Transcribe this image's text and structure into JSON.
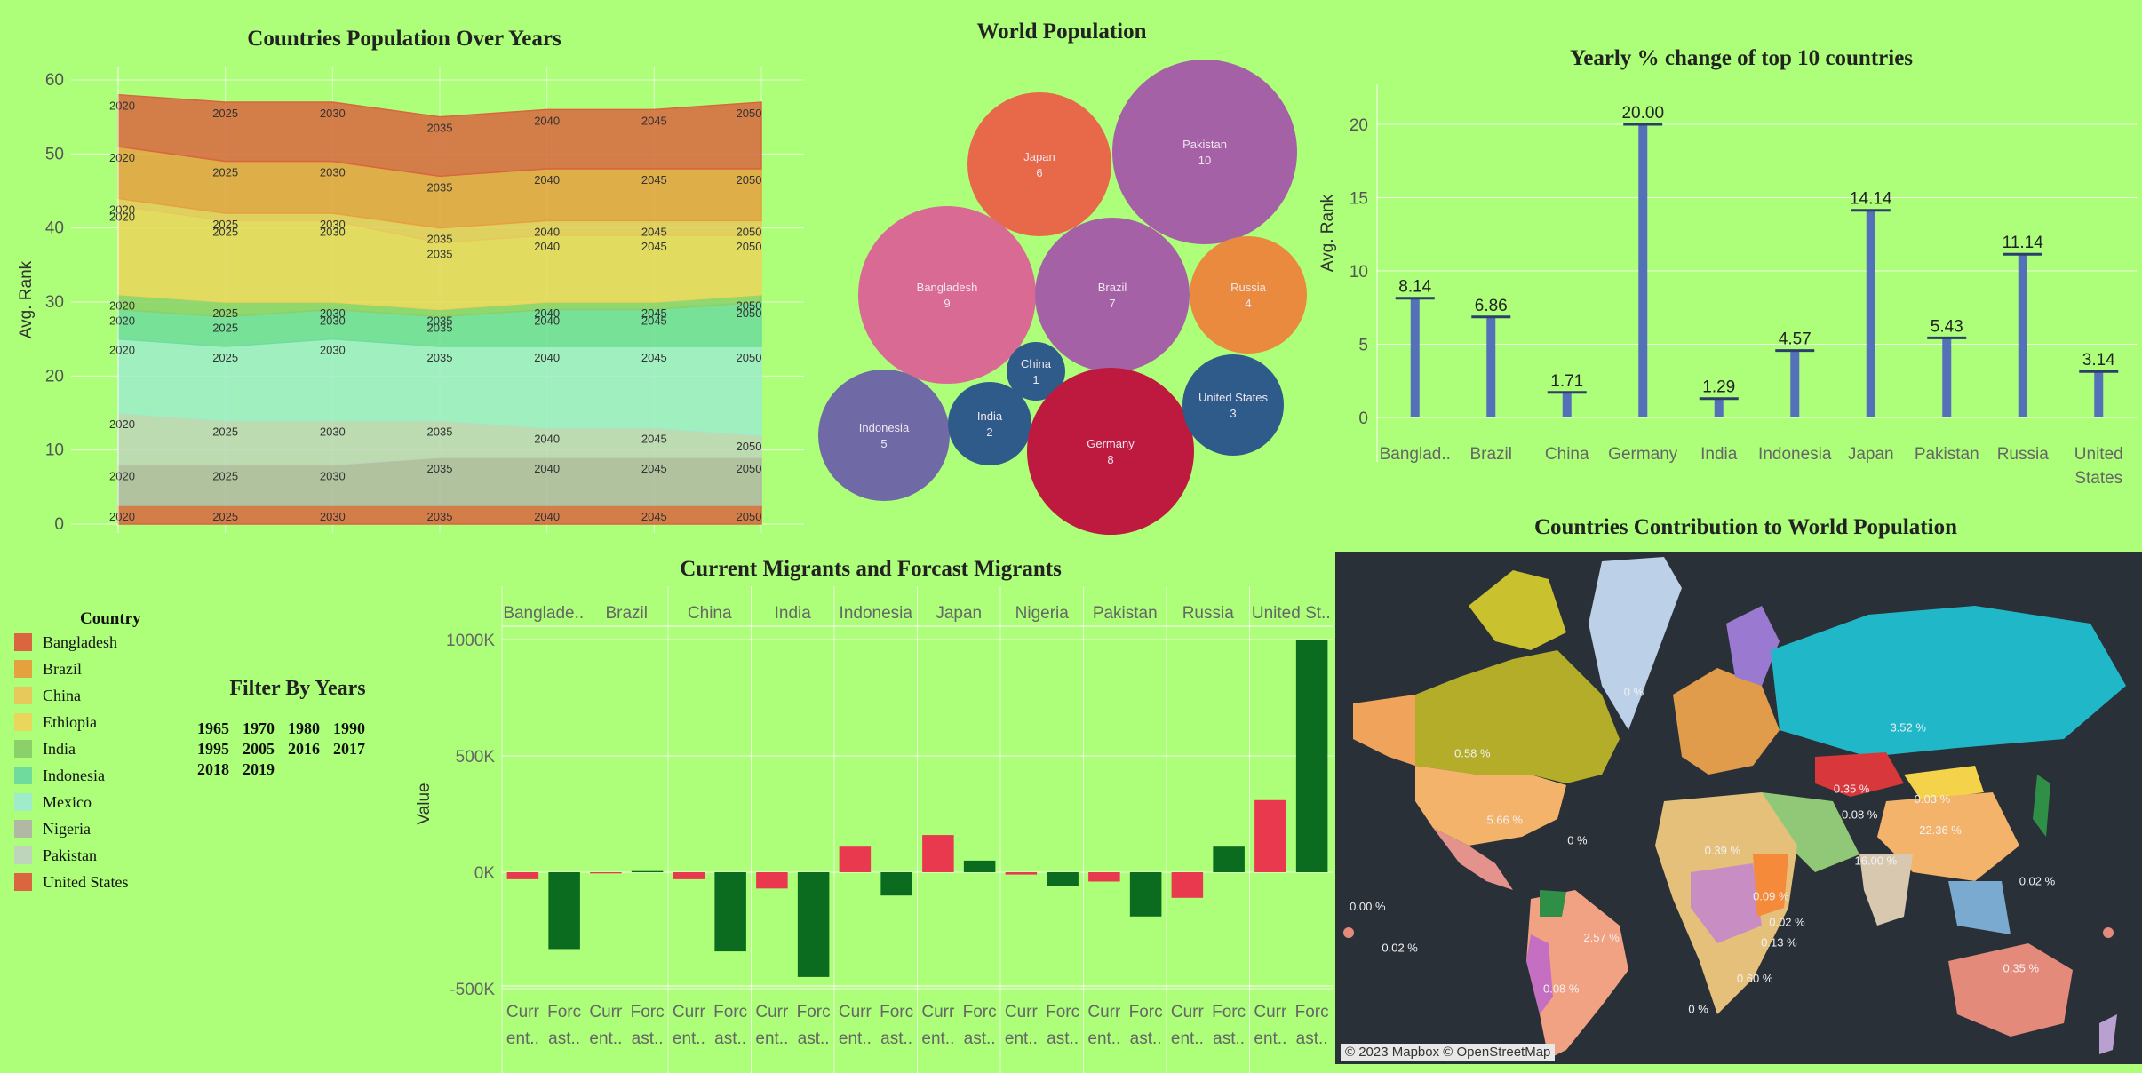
{
  "area_chart": {
    "title": "Countries Population Over Years",
    "ylabel": "Avg. Rank",
    "yticks": [
      "60",
      "50",
      "40",
      "30",
      "20",
      "10",
      "0"
    ],
    "years": [
      "2020",
      "2025",
      "2030",
      "2035",
      "2040",
      "2045",
      "2050"
    ]
  },
  "bubble_chart": {
    "title": "World Population",
    "bubbles": [
      {
        "name": "Pakistan",
        "value": "10",
        "color": "#a561a5"
      },
      {
        "name": "Japan",
        "value": "6",
        "color": "#e8694a"
      },
      {
        "name": "Bangladesh",
        "value": "9",
        "color": "#d96a94"
      },
      {
        "name": "Brazil",
        "value": "7",
        "color": "#a561a5"
      },
      {
        "name": "Russia",
        "value": "4",
        "color": "#ea8a3e"
      },
      {
        "name": "China",
        "value": "1",
        "color": "#2e5b8a"
      },
      {
        "name": "Indonesia",
        "value": "5",
        "color": "#6f6aa6"
      },
      {
        "name": "India",
        "value": "2",
        "color": "#2e5b8a"
      },
      {
        "name": "Germany",
        "value": "8",
        "color": "#be1a3f"
      },
      {
        "name": "United States",
        "value": "3",
        "color": "#2e5b8a"
      }
    ]
  },
  "bar_chart": {
    "title": "Yearly % change of top 10 countries",
    "ylabel": "Avg. Rank",
    "yticks": [
      "20",
      "15",
      "10",
      "5",
      "0"
    ],
    "categories": [
      "Banglad..",
      "Brazil",
      "China",
      "Germany",
      "India",
      "Indonesia",
      "Japan",
      "Pakistan",
      "Russia",
      "United States"
    ],
    "labels": [
      "8.14",
      "6.86",
      "1.71",
      "20.00",
      "1.29",
      "4.57",
      "14.14",
      "5.43",
      "11.14",
      "3.14"
    ]
  },
  "legend": {
    "title": "Country",
    "items": [
      {
        "name": "Bangladesh",
        "color": "#d9663f"
      },
      {
        "name": "Brazil",
        "color": "#e6a13f"
      },
      {
        "name": "China",
        "color": "#e6c95a"
      },
      {
        "name": "Ethiopia",
        "color": "#ead65c"
      },
      {
        "name": "India",
        "color": "#8bd06a"
      },
      {
        "name": "Indonesia",
        "color": "#6fdc9e"
      },
      {
        "name": "Mexico",
        "color": "#9eecca"
      },
      {
        "name": "Nigeria",
        "color": "#b1b8a4"
      },
      {
        "name": "Pakistan",
        "color": "#bfd5bb"
      },
      {
        "name": "United States",
        "color": "#d9663f"
      }
    ]
  },
  "filter": {
    "title": "Filter By Years",
    "years": [
      "1965",
      "1970",
      "1980",
      "1990",
      "1995",
      "2005",
      "2016",
      "2017",
      "2018",
      "2019"
    ]
  },
  "migrants": {
    "title": "Current Migrants and Forcast Migrants",
    "ylabel": "Value",
    "yticks": [
      "1000K",
      "500K",
      "0K",
      "-500K"
    ],
    "countries": [
      "Banglade..",
      "Brazil",
      "China",
      "India",
      "Indonesia",
      "Japan",
      "Nigeria",
      "Pakistan",
      "Russia",
      "United St.."
    ],
    "sub_top": "Curr",
    "sub_top2": "Forc",
    "sub_bottom": "ent..",
    "sub_bottom2": "ast..",
    "current_color": "#e8394e",
    "forecast_color": "#0b6b1f"
  },
  "chart_data": [
    {
      "type": "area",
      "title": "Countries Population Over Years",
      "ylabel": "Avg. Rank",
      "x": [
        2020,
        2025,
        2030,
        2035,
        2040,
        2045,
        2050
      ],
      "ylim": [
        0,
        60
      ],
      "series": [
        {
          "name": "Bangladesh",
          "values": [
            0,
            0,
            0,
            0,
            0,
            0,
            0
          ]
        },
        {
          "name": "Nigeria",
          "values": [
            2.5,
            2.5,
            2.5,
            2.5,
            2.5,
            2.5,
            2.5
          ]
        },
        {
          "name": "Pakistan",
          "values": [
            8,
            8,
            8,
            9,
            9,
            9,
            9
          ]
        },
        {
          "name": "Mexico",
          "values": [
            15,
            14,
            14,
            14,
            13,
            13,
            12
          ]
        },
        {
          "name": "Indonesia",
          "values": [
            25,
            24,
            25,
            24,
            24,
            24,
            24
          ]
        },
        {
          "name": "India",
          "values": [
            29,
            28,
            29,
            28,
            29,
            29,
            30
          ]
        },
        {
          "name": "Ethiopia",
          "values": [
            31,
            30,
            30,
            29,
            30,
            30,
            31
          ]
        },
        {
          "name": "China",
          "values": [
            43,
            41,
            41,
            38,
            39,
            39,
            39
          ]
        },
        {
          "name": "Brazil",
          "values": [
            44,
            42,
            42,
            40,
            41,
            41,
            41
          ]
        },
        {
          "name": "United States",
          "values": [
            51,
            49,
            49,
            47,
            48,
            48,
            48
          ]
        }
      ],
      "top": [
        58,
        57,
        57,
        55,
        56,
        56,
        57
      ]
    },
    {
      "type": "scatter",
      "title": "World Population",
      "note": "packed bubble chart; bubble label shows rank",
      "categories": [
        "Pakistan",
        "Japan",
        "Bangladesh",
        "Brazil",
        "Russia",
        "China",
        "Indonesia",
        "India",
        "Germany",
        "United States"
      ],
      "values": [
        10,
        6,
        9,
        7,
        4,
        1,
        5,
        2,
        8,
        3
      ]
    },
    {
      "type": "bar",
      "title": "Yearly % change of top 10 countries",
      "ylabel": "Avg. Rank",
      "categories": [
        "Bangladesh",
        "Brazil",
        "China",
        "Germany",
        "India",
        "Indonesia",
        "Japan",
        "Pakistan",
        "Russia",
        "United States"
      ],
      "values": [
        8.14,
        6.86,
        1.71,
        20.0,
        1.29,
        4.57,
        14.14,
        5.43,
        11.14,
        3.14
      ],
      "ylim": [
        0,
        22
      ]
    },
    {
      "type": "bar",
      "title": "Current Migrants and Forcast Migrants",
      "ylabel": "Value",
      "categories": [
        "Bangladesh",
        "Brazil",
        "China",
        "India",
        "Indonesia",
        "Japan",
        "Nigeria",
        "Pakistan",
        "Russia",
        "United States"
      ],
      "series": [
        {
          "name": "Current",
          "values": [
            -30000,
            -5000,
            -30000,
            -70000,
            110000,
            160000,
            -10000,
            -40000,
            -110000,
            310000
          ]
        },
        {
          "name": "Forecast",
          "values": [
            -330000,
            5000,
            -340000,
            -450000,
            -100000,
            50000,
            -60000,
            -190000,
            110000,
            1000000
          ]
        }
      ],
      "ylim": [
        -550000,
        1000000
      ]
    }
  ],
  "map": {
    "title": "Countries Contribution to World Population",
    "credit": "© 2023 Mapbox © OpenStreetMap",
    "labels": [
      {
        "text": "0 %",
        "lx": 0.37,
        "ly": 0.28
      },
      {
        "text": "0.58 %",
        "lx": 0.17,
        "ly": 0.4
      },
      {
        "text": "5.66 %",
        "lx": 0.21,
        "ly": 0.53
      },
      {
        "text": "3.52 %",
        "lx": 0.71,
        "ly": 0.35
      },
      {
        "text": "0.35 %",
        "lx": 0.64,
        "ly": 0.47
      },
      {
        "text": "0.03 %",
        "lx": 0.74,
        "ly": 0.49
      },
      {
        "text": "22.36 %",
        "lx": 0.75,
        "ly": 0.55
      },
      {
        "text": "0.08 %",
        "lx": 0.65,
        "ly": 0.52
      },
      {
        "text": "0.39 %",
        "lx": 0.48,
        "ly": 0.59
      },
      {
        "text": "2.57 %",
        "lx": 0.33,
        "ly": 0.76
      },
      {
        "text": "0.35 %",
        "lx": 0.85,
        "ly": 0.82
      },
      {
        "text": "0.02 %",
        "lx": 0.87,
        "ly": 0.65
      },
      {
        "text": "0 %",
        "lx": 0.3,
        "ly": 0.57
      },
      {
        "text": "0.00 %",
        "lx": 0.04,
        "ly": 0.7
      },
      {
        "text": "0.02 %",
        "lx": 0.08,
        "ly": 0.78
      },
      {
        "text": "0 %",
        "lx": 0.45,
        "ly": 0.9
      },
      {
        "text": "0.08 %",
        "lx": 0.28,
        "ly": 0.86
      },
      {
        "text": "0.02 %",
        "lx": 0.56,
        "ly": 0.73
      },
      {
        "text": "16.00 %",
        "lx": 0.67,
        "ly": 0.61
      },
      {
        "text": "0.09 %",
        "lx": 0.54,
        "ly": 0.68
      },
      {
        "text": "0.13 %",
        "lx": 0.55,
        "ly": 0.77
      },
      {
        "text": "0.60 %",
        "lx": 0.52,
        "ly": 0.84
      }
    ]
  }
}
